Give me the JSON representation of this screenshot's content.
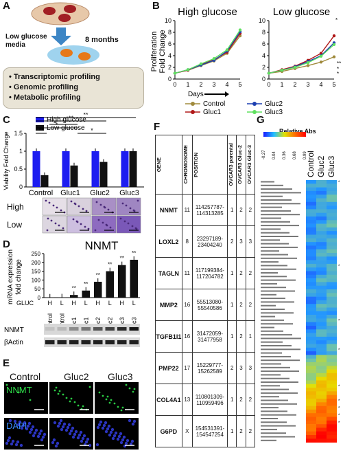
{
  "panel_labels": [
    "A",
    "B",
    "C",
    "D",
    "E",
    "F",
    "G"
  ],
  "panel_a": {
    "media_label": "Low glucose\nmedia",
    "duration_label": "8 months",
    "profiling": [
      "Transcriptomic profiling",
      "Genomic profiling",
      "Metabolic profiling"
    ]
  },
  "panel_b": {
    "ylabel": "Proliferation\nFold Change",
    "xlabel": "Days",
    "legend": [
      "Control",
      "Gluc1",
      "Gluc2",
      "Gluc3"
    ],
    "legend_colors": [
      "#a08a3c",
      "#b01818",
      "#1c3fb0",
      "#5fe05f"
    ],
    "chart_data": [
      {
        "type": "line",
        "title": "High glucose",
        "x": [
          0,
          1,
          2,
          3,
          4,
          5
        ],
        "ylim": [
          0,
          10
        ],
        "yticks": [
          0,
          2,
          4,
          6,
          8,
          10
        ],
        "series": [
          {
            "name": "Control",
            "values": [
              1,
              1.5,
              2.3,
              3.1,
              4.4,
              7.4
            ]
          },
          {
            "name": "Gluc1",
            "values": [
              1,
              1.5,
              2.5,
              3.3,
              4.6,
              7.8
            ]
          },
          {
            "name": "Gluc2",
            "values": [
              1,
              1.6,
              2.4,
              3.2,
              4.8,
              8.1
            ]
          },
          {
            "name": "Gluc3",
            "values": [
              1,
              1.6,
              2.6,
              3.5,
              5.0,
              8.4
            ]
          }
        ],
        "annotation": "*"
      },
      {
        "type": "line",
        "title": "Low glucose",
        "x": [
          0,
          1,
          2,
          3,
          4,
          5
        ],
        "ylim": [
          0,
          10
        ],
        "yticks": [
          0,
          2,
          4,
          6,
          8,
          10
        ],
        "series": [
          {
            "name": "Control",
            "values": [
              1,
              1.3,
              1.8,
              2.3,
              2.9,
              3.8
            ]
          },
          {
            "name": "Gluc1",
            "values": [
              1,
              1.6,
              2.2,
              3.2,
              4.4,
              7.4
            ]
          },
          {
            "name": "Gluc2",
            "values": [
              1,
              1.5,
              2.1,
              3.0,
              4.0,
              6.2
            ]
          },
          {
            "name": "Gluc3",
            "values": [
              1,
              1.5,
              2.0,
              2.8,
              3.9,
              5.9
            ]
          }
        ],
        "annotations": [
          "**",
          "*",
          "*"
        ]
      }
    ]
  },
  "panel_c": {
    "ylabel": "Viability Fold Change",
    "legend": [
      "High glucose",
      "Low glucose"
    ],
    "legend_colors": [
      "#1d1df0",
      "#111111"
    ],
    "chart_data": {
      "type": "bar",
      "categories": [
        "Control",
        "Gluc1",
        "Gluc2",
        "Gluc3"
      ],
      "series": [
        {
          "name": "High glucose",
          "values": [
            1.0,
            1.0,
            1.0,
            1.0
          ]
        },
        {
          "name": "Low glucose",
          "values": [
            0.33,
            0.6,
            0.7,
            1.0
          ]
        }
      ],
      "ylim": [
        0,
        1.5
      ],
      "yticks": [
        0,
        0.5,
        1,
        1.5
      ]
    },
    "sig_labels": [
      "**",
      "*",
      "*",
      "**",
      "*",
      "**"
    ],
    "image_rows": [
      "High",
      "Low"
    ]
  },
  "panel_d": {
    "title": "NNMT",
    "ylabel": "mRNA expression\nfold change",
    "gluc_label": "GLUC",
    "chart_data": {
      "type": "bar",
      "categories": [
        "Control",
        "Control",
        "Gluc1",
        "Gluc1",
        "Gluc2",
        "Gluc2",
        "Gluc3",
        "Gluc3"
      ],
      "hl": [
        "H",
        "L",
        "H",
        "L",
        "H",
        "L",
        "H",
        "L"
      ],
      "values": [
        1,
        2,
        15,
        40,
        90,
        150,
        185,
        215
      ],
      "ylim": [
        0,
        250
      ],
      "yticks": [
        0,
        50,
        100,
        150,
        200,
        250
      ],
      "sig": [
        "",
        "",
        "**",
        "**",
        "**",
        "**",
        "**",
        "**"
      ]
    },
    "blot_labels": [
      "NNMT",
      "βActin"
    ]
  },
  "panel_e": {
    "columns": [
      "Control",
      "Gluc2",
      "Gluc3"
    ],
    "rows": [
      "NNMT",
      "DAPI"
    ]
  },
  "panel_f": {
    "headers": [
      "GENE",
      "CHROMOSOME",
      "POSITION",
      "OVCAR3 parental",
      "OVCAR3 Gluc-2",
      "OVCAR3 Gluc-3"
    ],
    "rows": [
      {
        "gene": "NNMT",
        "chrom": "11",
        "pos": "114257787-\n114313285",
        "a": "1",
        "b": "2",
        "c": "2"
      },
      {
        "gene": "LOXL2",
        "chrom": "8",
        "pos": "23297189-\n23404240",
        "a": "2",
        "b": "3",
        "c": "3"
      },
      {
        "gene": "TAGLN",
        "chrom": "11",
        "pos": "117199384-\n117204782",
        "a": "1",
        "b": "2",
        "c": "2"
      },
      {
        "gene": "MMP2",
        "chrom": "16",
        "pos": "55513080-\n55540586",
        "a": "1",
        "b": "2",
        "c": "2"
      },
      {
        "gene": "TGFB1I1",
        "chrom": "16",
        "pos": "31472059-\n31477958",
        "a": "1",
        "b": "2",
        "c": "1"
      },
      {
        "gene": "PMP22",
        "chrom": "17",
        "pos": "15229777-\n15262589",
        "a": "2",
        "b": "3",
        "c": "3"
      },
      {
        "gene": "COL4A1",
        "chrom": "13",
        "pos": "110801309-\n110959496",
        "a": "1",
        "b": "2",
        "c": "2"
      },
      {
        "gene": "G6PD",
        "chrom": "X",
        "pos": "154531391-\n154547254",
        "a": "1",
        "b": "2",
        "c": "2"
      }
    ]
  },
  "panel_g": {
    "legend_title": "Relative Abs",
    "scale_ticks": [
      "-0.27",
      "0.04",
      "0.36",
      "0.68",
      "0.99"
    ],
    "columns": [
      "Control",
      "Gluc2",
      "Gluc3"
    ],
    "chart_data": {
      "type": "heatmap",
      "rows": 72,
      "columns": [
        "Control",
        "Gluc2",
        "Gluc3"
      ]
    }
  }
}
